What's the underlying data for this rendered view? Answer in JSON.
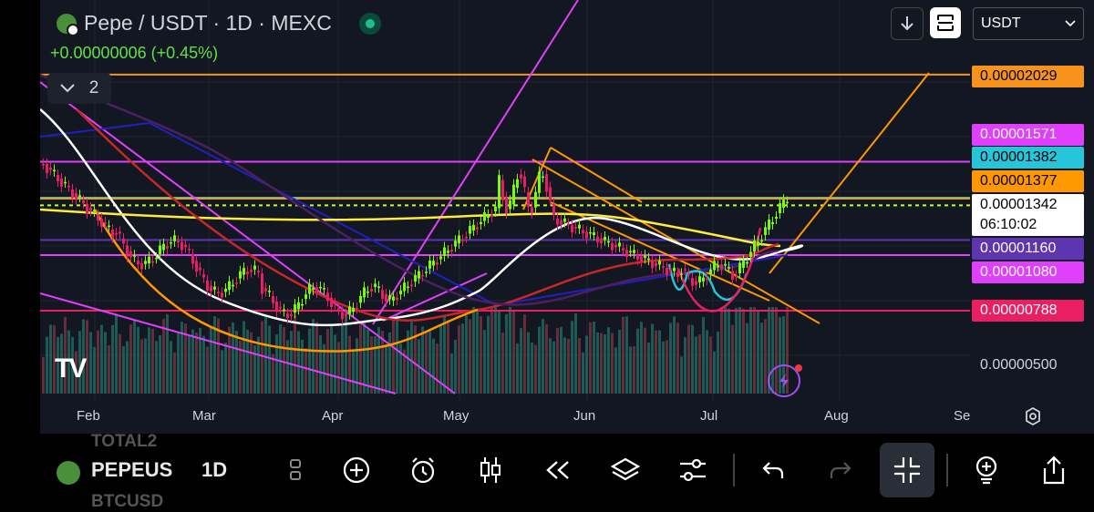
{
  "header": {
    "title": "Pepe / USDT · 1D · MEXC",
    "change": "+0.00000006 (+0.45%)",
    "indicator_count": "2"
  },
  "toolbar": {
    "currency": "USDT",
    "download_icon": "arrow-down-icon",
    "fullscreen_icon": "fullscreen-icon"
  },
  "price_labels": [
    {
      "text": "0.00002029",
      "bg": "#f7931a",
      "fg": "#000000"
    },
    {
      "text": "0.00001571",
      "bg": "#e040fb",
      "fg": "#ffffff"
    },
    {
      "text": "0.00001382",
      "bg": "#26c6da",
      "fg": "#000000"
    },
    {
      "text": "0.00001377",
      "bg": "#ff9800",
      "fg": "#000000"
    },
    {
      "text": "0.00001342",
      "bg": "#ffffff",
      "fg": "#000000"
    },
    {
      "text": "06:10:02",
      "bg": "#ffffff",
      "fg": "#000000"
    },
    {
      "text": "0.00001160",
      "bg": "#5e35b1",
      "fg": "#ffffff"
    },
    {
      "text": "0.00001080",
      "bg": "#e040fb",
      "fg": "#ffffff"
    },
    {
      "text": "0.00000788",
      "bg": "#e91e63",
      "fg": "#ffffff"
    },
    {
      "text": "0.00000500",
      "bg": "transparent",
      "fg": "#d1d4dc"
    }
  ],
  "chart_data": {
    "type": "candlestick",
    "x_tick_labels": [
      "Feb",
      "Mar",
      "Apr",
      "May",
      "Jun",
      "Jul",
      "Aug",
      "Se"
    ],
    "y_tick_labels": [
      "0.00000500"
    ],
    "horizontal_levels": [
      {
        "value": 2.029e-05,
        "color": "#f7931a"
      },
      {
        "value": 1.571e-05,
        "color": "#e040fb"
      },
      {
        "value": 1.382e-05,
        "color": "#26c6da"
      },
      {
        "value": 1.377e-05,
        "color": "#ff9800"
      },
      {
        "value": 1.342e-05,
        "color": "#c0ff2a"
      },
      {
        "value": 1.16e-05,
        "color": "#5e35b1"
      },
      {
        "value": 1.08e-05,
        "color": "#e040fb"
      },
      {
        "value": 7.88e-06,
        "color": "#e91e63"
      }
    ],
    "last_price": 1.342e-05,
    "countdown": "06:10:02"
  },
  "bottom": {
    "symbol": "PEPEUS",
    "ghost_above": "TOTAL2",
    "ghost_below": "BTCUSD",
    "timeframe": "1D"
  },
  "bottom_icons": [
    "interval-icon",
    "add-icon",
    "alert-icon",
    "candles-icon",
    "replay-icon",
    "layers-icon",
    "settings-icon",
    "undo-icon",
    "redo-icon",
    "collapse-icon",
    "idea-icon",
    "share-icon"
  ]
}
